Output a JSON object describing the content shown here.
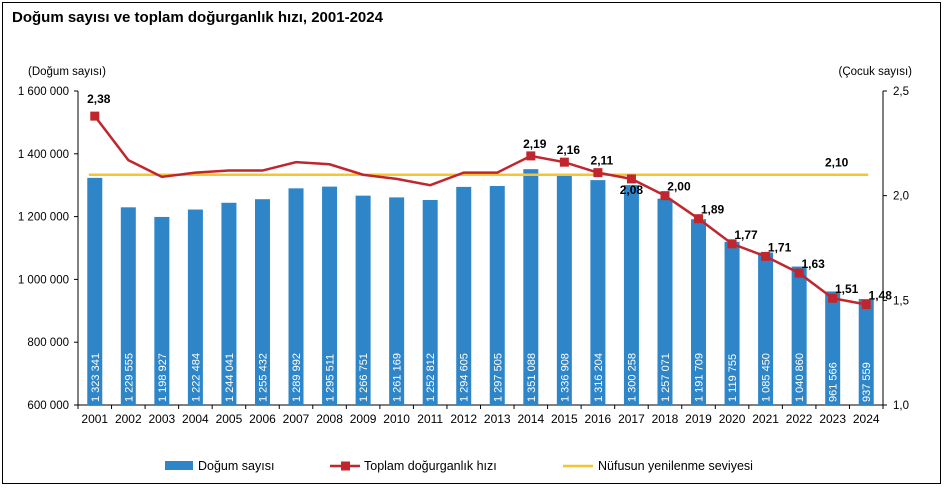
{
  "chart_data": {
    "type": "bar+line",
    "title": "Doğum sayısı ve toplam doğurganlık hızı, 2001-2024",
    "y_left_label": "(Doğum sayısı)",
    "y_right_label": "(Çocuk sayısı)",
    "categories": [
      "2001",
      "2002",
      "2003",
      "2004",
      "2005",
      "2006",
      "2007",
      "2008",
      "2009",
      "2010",
      "2011",
      "2012",
      "2013",
      "2014",
      "2015",
      "2016",
      "2017",
      "2018",
      "2019",
      "2020",
      "2021",
      "2022",
      "2023",
      "2024"
    ],
    "y_left": {
      "min": 600000,
      "max": 1600000,
      "ticks": [
        600000,
        800000,
        1000000,
        1200000,
        1400000,
        1600000
      ],
      "tick_labels": [
        "600 000",
        "800 000",
        "1 000 000",
        "1 200 000",
        "1 400 000",
        "1 600 000"
      ]
    },
    "y_right": {
      "min": 1.0,
      "max": 2.5,
      "ticks": [
        1.0,
        1.5,
        2.0,
        2.5
      ],
      "tick_labels": [
        "1,0",
        "1,5",
        "2,0",
        "2,5"
      ]
    },
    "series": [
      {
        "name": "Doğum sayısı",
        "type": "bar",
        "axis": "left",
        "color": "#2E86C8",
        "values": [
          1323341,
          1229555,
          1198927,
          1222484,
          1244041,
          1255432,
          1289992,
          1295511,
          1266751,
          1261169,
          1252812,
          1294605,
          1297505,
          1351088,
          1336908,
          1316204,
          1300258,
          1257071,
          1191709,
          1119755,
          1085450,
          1040860,
          961566,
          937559
        ],
        "value_labels": [
          "1 323 341",
          "1 229 555",
          "1 198 927",
          "1 222 484",
          "1 244 041",
          "1 255 432",
          "1 289 992",
          "1 295 511",
          "1 266 751",
          "1 261 169",
          "1 252 812",
          "1 294 605",
          "1 297 505",
          "1 351 088",
          "1 336 908",
          "1 316 204",
          "1 300 258",
          "1 257 071",
          "1 191 709",
          "1 119 755",
          "1 085 450",
          "1 040 860",
          "961 566",
          "937 559"
        ]
      },
      {
        "name": "Toplam doğurganlık hızı",
        "type": "line",
        "axis": "right",
        "color": "#C0262D",
        "values": [
          2.38,
          2.17,
          2.09,
          2.11,
          2.12,
          2.12,
          2.16,
          2.15,
          2.1,
          2.08,
          2.05,
          2.11,
          2.11,
          2.19,
          2.16,
          2.11,
          2.08,
          2.0,
          1.89,
          1.77,
          1.71,
          1.63,
          1.51,
          1.48
        ],
        "marker_labels": [
          "2,38",
          "",
          "",
          "",
          "",
          "",
          "",
          "",
          "",
          "",
          "",
          "",
          "",
          "2,19",
          "2,16",
          "2,11",
          "2,08",
          "2,00",
          "1,89",
          "1,77",
          "1,71",
          "1,63",
          "1,51",
          "1,48"
        ]
      },
      {
        "name": "Nüfusun yenilenme seviyesi",
        "type": "line",
        "axis": "right",
        "color": "#F5C431",
        "value": 2.1,
        "label": "2,10"
      }
    ],
    "legend_position": "bottom",
    "grid": false
  }
}
